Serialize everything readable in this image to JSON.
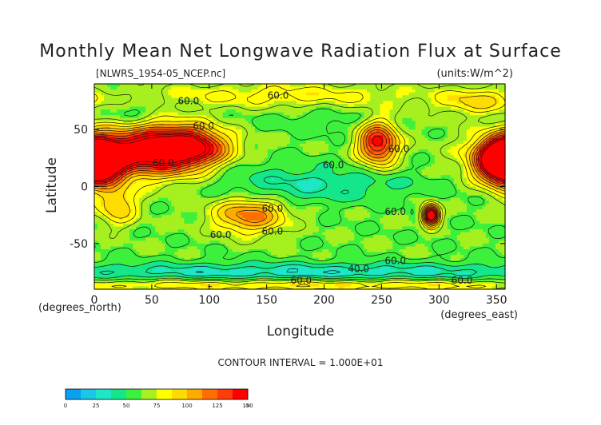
{
  "chart_data": {
    "type": "heatmap",
    "title": "Monthly Mean Net Longwave Radiation Flux at Surface",
    "source_file": "[NLWRS_1954-05_NCEP.nc]",
    "units": "(units:W/m^2)",
    "xlabel": "Longitude",
    "ylabel": "Latitude",
    "x_unit_label": "(degrees_east)",
    "y_unit_label": "(degrees_north)",
    "xlim": [
      0,
      357.5
    ],
    "ylim": [
      -90,
      90
    ],
    "x_ticks": [
      {
        "value": 0,
        "label": "0"
      },
      {
        "value": 50,
        "label": "50"
      },
      {
        "value": 100,
        "label": "100"
      },
      {
        "value": 150,
        "label": "150"
      },
      {
        "value": 200,
        "label": "200"
      },
      {
        "value": 250,
        "label": "250"
      },
      {
        "value": 300,
        "label": "300"
      },
      {
        "value": 350,
        "label": "350"
      }
    ],
    "y_ticks": [
      {
        "value": 50,
        "label": "50"
      },
      {
        "value": 0,
        "label": "0"
      },
      {
        "value": -50,
        "label": "-50"
      }
    ],
    "contour_interval_text": "CONTOUR INTERVAL = 1.000E+01",
    "contour_labels": [
      {
        "text": "60.0",
        "lon": 82,
        "lat": 72
      },
      {
        "text": "60.0",
        "lon": 160,
        "lat": 77
      },
      {
        "text": "60.0",
        "lon": 95,
        "lat": 50
      },
      {
        "text": "60.0",
        "lon": 265,
        "lat": 30
      },
      {
        "text": "60.0",
        "lon": 208,
        "lat": 16
      },
      {
        "text": "60.0",
        "lon": 60,
        "lat": 18
      },
      {
        "text": "60.0",
        "lon": 155,
        "lat": -22
      },
      {
        "text": "60.0",
        "lon": 262,
        "lat": -25
      },
      {
        "text": "60.0",
        "lon": 110,
        "lat": -45
      },
      {
        "text": "60.0",
        "lon": 155,
        "lat": -42
      },
      {
        "text": "60.0",
        "lon": 262,
        "lat": -68
      },
      {
        "text": "40.0",
        "lon": 230,
        "lat": -75
      },
      {
        "text": "60.0",
        "lon": 180,
        "lat": -85
      },
      {
        "text": "60.0",
        "lon": 320,
        "lat": -85
      }
    ],
    "base_value": 62,
    "features": [
      {
        "lon": 0,
        "lat": 22,
        "sx": 18,
        "sy": 14,
        "amp": 100
      },
      {
        "lon": 358,
        "lat": 22,
        "sx": 14,
        "sy": 12,
        "amp": 95
      },
      {
        "lon": 35,
        "lat": 30,
        "sx": 40,
        "sy": 14,
        "amp": 62
      },
      {
        "lon": 65,
        "lat": 33,
        "sx": 28,
        "sy": 16,
        "amp": 70
      },
      {
        "lon": 88,
        "lat": 35,
        "sx": 20,
        "sy": 10,
        "amp": 50
      },
      {
        "lon": 247,
        "lat": 38,
        "sx": 12,
        "sy": 13,
        "amp": 85
      },
      {
        "lon": 20,
        "lat": -17,
        "sx": 12,
        "sy": 12,
        "amp": 38
      },
      {
        "lon": 135,
        "lat": -25,
        "sx": 22,
        "sy": 11,
        "amp": 55
      },
      {
        "lon": 293,
        "lat": -25,
        "sx": 5,
        "sy": 6,
        "amp": 130
      },
      {
        "lon": 190,
        "lat": -5,
        "sx": 60,
        "sy": 8,
        "amp": -18
      },
      {
        "lon": 200,
        "lat": 5,
        "sx": 60,
        "sy": 5,
        "amp": -12
      },
      {
        "lon": 160,
        "lat": 15,
        "sx": 70,
        "sy": 8,
        "amp": -10
      },
      {
        "lon": 180,
        "lat": -75,
        "sx": 200,
        "sy": 6,
        "amp": -30
      },
      {
        "lon": 180,
        "lat": -86,
        "sx": 200,
        "sy": 4,
        "amp": 30
      },
      {
        "lon": 170,
        "lat": 80,
        "sx": 90,
        "sy": 8,
        "amp": 22
      },
      {
        "lon": 335,
        "lat": 74,
        "sx": 25,
        "sy": 8,
        "amp": 30
      },
      {
        "lon": 30,
        "lat": 65,
        "sx": 25,
        "sy": 8,
        "amp": -12
      },
      {
        "lon": 195,
        "lat": 58,
        "sx": 40,
        "sy": 8,
        "amp": -8
      }
    ],
    "color_scale": {
      "colors": [
        "#0aa0f0",
        "#19c8e6",
        "#1ee6c8",
        "#14e68c",
        "#3cf03c",
        "#a5f01e",
        "#ffff00",
        "#ffdc00",
        "#ffaa00",
        "#ff6e00",
        "#ff3c0a",
        "#ff0000"
      ],
      "ticks": [
        {
          "value": 0,
          "label": "0"
        },
        {
          "value": 25,
          "label": "25"
        },
        {
          "value": 50,
          "label": "50"
        },
        {
          "value": 75,
          "label": "75"
        },
        {
          "value": 100,
          "label": "100"
        },
        {
          "value": 125,
          "label": "125"
        },
        {
          "value": 150,
          "label": "150"
        }
      ],
      "overflow_label": "∞"
    }
  }
}
